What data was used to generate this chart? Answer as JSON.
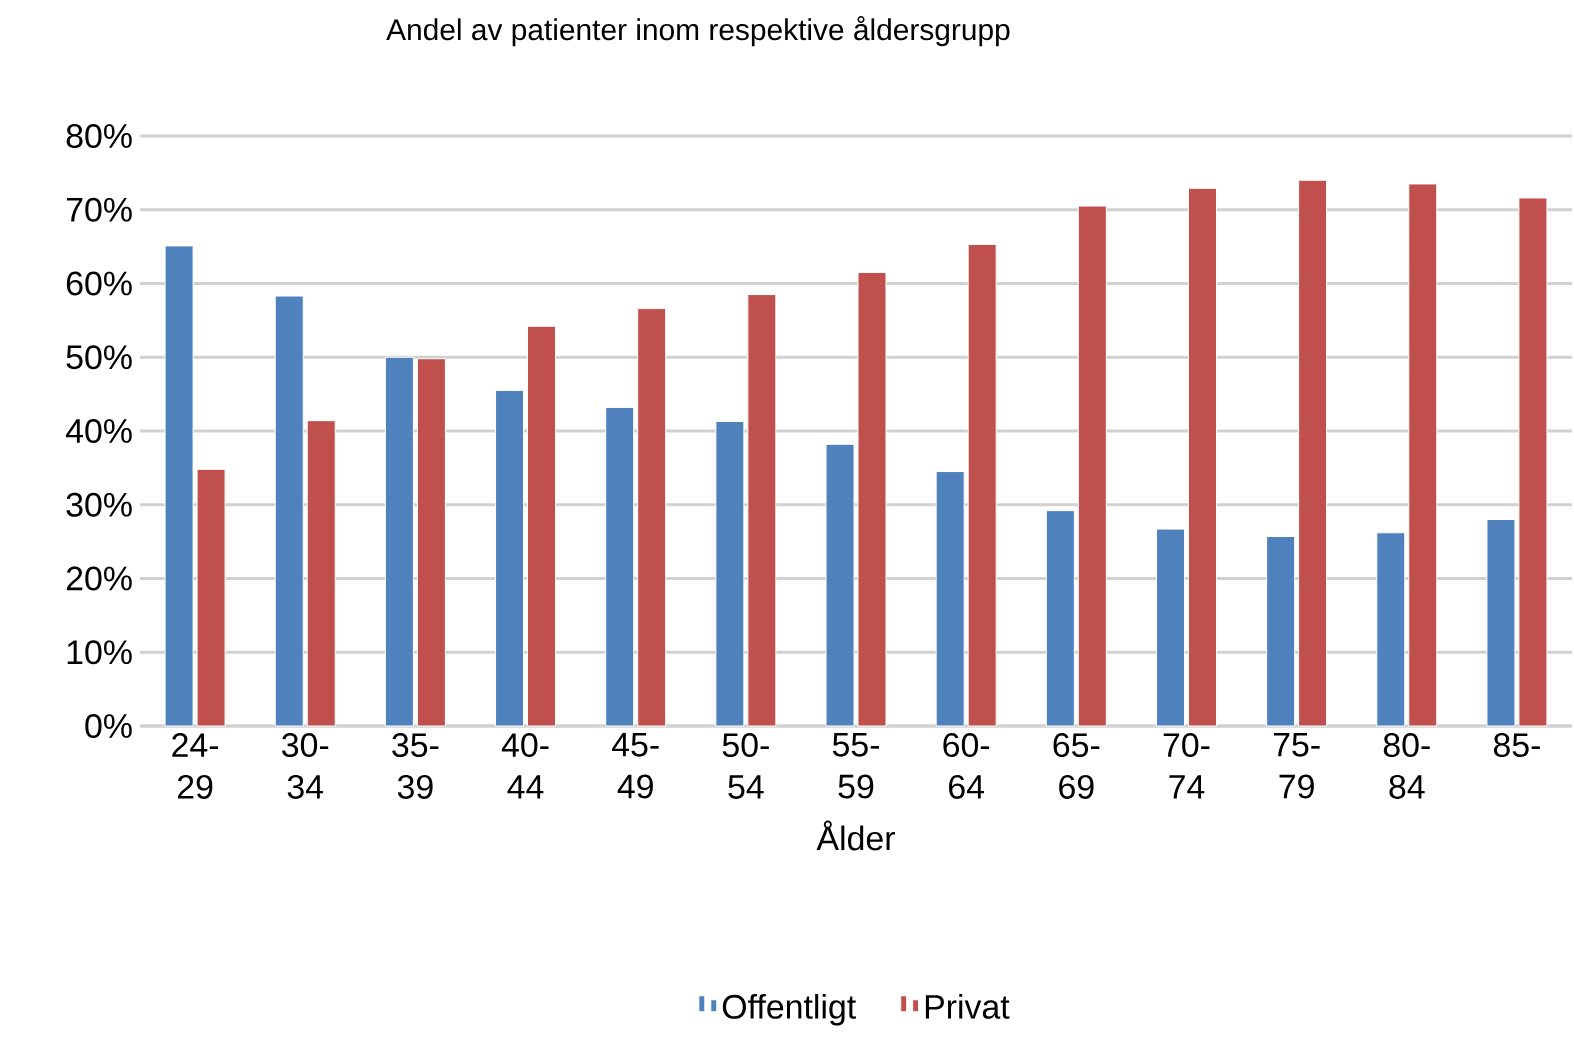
{
  "chart_data": {
    "type": "bar",
    "title": "Andel av patienter inom respektive åldersgrupp",
    "xlabel": "Ålder",
    "categories": [
      "24-29",
      "30-34",
      "35-39",
      "40-44",
      "45-49",
      "50-54",
      "55-59",
      "60-64",
      "65-69",
      "70-74",
      "75-79",
      "80-84",
      "85-"
    ],
    "series": [
      {
        "name": "Offentligt",
        "color": "#4f81bd",
        "values": [
          65.1,
          58.3,
          50.0,
          45.5,
          43.2,
          41.3,
          38.2,
          34.5,
          29.2,
          26.7,
          25.7,
          26.2,
          28.0
        ]
      },
      {
        "name": "Privat",
        "color": "#c0504d",
        "values": [
          34.8,
          41.4,
          49.8,
          54.2,
          56.6,
          58.5,
          61.5,
          65.3,
          70.5,
          72.9,
          74.0,
          73.5,
          71.6
        ]
      }
    ],
    "ylim": [
      0,
      80
    ],
    "yticks": [
      {
        "value": 0,
        "label": "0%"
      },
      {
        "value": 10,
        "label": "10%"
      },
      {
        "value": 20,
        "label": "20%"
      },
      {
        "value": 30,
        "label": "30%"
      },
      {
        "value": 40,
        "label": "40%"
      },
      {
        "value": 50,
        "label": "50%"
      },
      {
        "value": 60,
        "label": "60%"
      },
      {
        "value": 70,
        "label": "70%"
      },
      {
        "value": 80,
        "label": "80%"
      }
    ],
    "grid": "y",
    "legend": "bottom"
  }
}
